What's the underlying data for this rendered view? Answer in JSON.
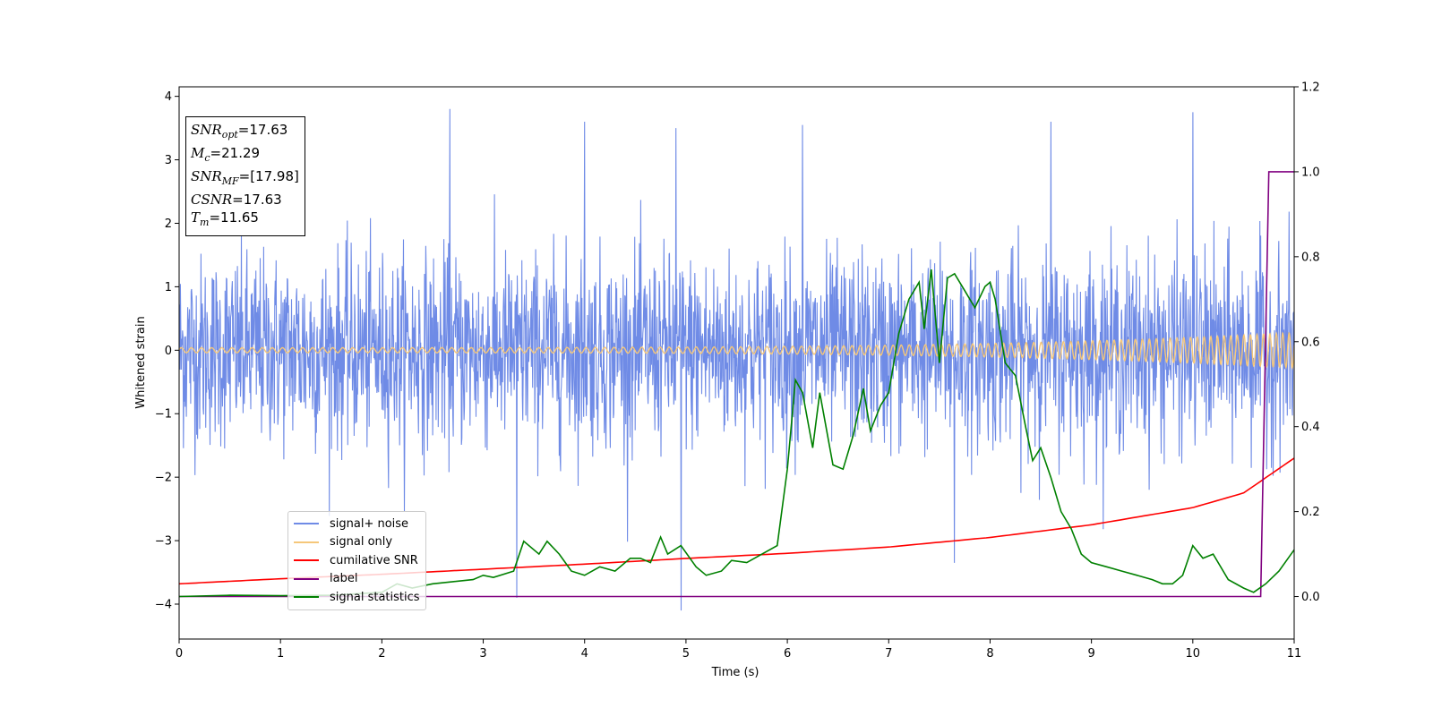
{
  "chart_data": {
    "type": "line",
    "title": "",
    "xlabel": "Time (s)",
    "ylabel": "Whitened strain",
    "xlim": [
      0,
      11
    ],
    "ylim_left": [
      -4.55,
      4.15
    ],
    "ylim_right": [
      -0.1,
      1.2
    ],
    "xticks": [
      "0",
      "1",
      "2",
      "3",
      "4",
      "5",
      "6",
      "7",
      "8",
      "9",
      "10",
      "11"
    ],
    "yticks_left": [
      "−4",
      "−3",
      "−2",
      "−1",
      "0",
      "1",
      "2",
      "3",
      "4"
    ],
    "yticks_right": [
      "0.0",
      "0.2",
      "0.4",
      "0.6",
      "0.8",
      "1.0",
      "1.2"
    ],
    "legend_location": "lower-left",
    "grid": false,
    "annotation_box": {
      "snr_opt": "17.63",
      "mc": "21.29",
      "snr_mf": "[17.98]",
      "csnr": "17.63",
      "tm": "11.65"
    },
    "series": [
      {
        "name": "signal+ noise",
        "axis": "left",
        "color": "#6f8be6",
        "description_values": {
          "noise_std": 0.75,
          "max_peak": 3.8,
          "min_peak": -4.1
        },
        "peaks": [
          [
            2.67,
            3.8
          ],
          [
            10.0,
            3.75
          ],
          [
            4.0,
            3.6
          ],
          [
            4.9,
            3.5
          ],
          [
            6.15,
            3.55
          ],
          [
            8.6,
            3.6
          ],
          [
            4.95,
            -4.1
          ],
          [
            3.33,
            -3.9
          ],
          [
            7.65,
            -3.35
          ]
        ]
      },
      {
        "name": "signal only",
        "axis": "left",
        "color": "#f5c77a",
        "amplitude_start": 0.04,
        "amplitude_end": 0.28,
        "frequency_start_hz": 10,
        "frequency_end_hz": 16
      },
      {
        "name": "cumilative SNR",
        "axis": "left",
        "color": "#ff0000",
        "x": [
          0,
          1,
          2,
          3,
          4,
          5,
          6,
          7,
          8,
          9,
          10,
          10.5,
          11
        ],
        "y": [
          -3.68,
          -3.6,
          -3.53,
          -3.45,
          -3.37,
          -3.28,
          -3.2,
          -3.1,
          -2.95,
          -2.75,
          -2.48,
          -2.25,
          -1.7
        ]
      },
      {
        "name": "label",
        "axis": "right",
        "color": "#800080",
        "x": [
          0,
          10.67,
          10.75,
          11
        ],
        "y": [
          0,
          0,
          1,
          1
        ]
      },
      {
        "name": "signal statistics",
        "axis": "right",
        "color": "#008000",
        "x": [
          0,
          0.5,
          1,
          1.5,
          2,
          2.15,
          2.3,
          2.5,
          2.7,
          2.9,
          3.0,
          3.1,
          3.3,
          3.4,
          3.55,
          3.63,
          3.75,
          3.87,
          4.0,
          4.15,
          4.3,
          4.45,
          4.55,
          4.65,
          4.75,
          4.82,
          4.95,
          5.1,
          5.2,
          5.35,
          5.45,
          5.6,
          5.75,
          5.9,
          6.0,
          6.08,
          6.15,
          6.25,
          6.32,
          6.45,
          6.55,
          6.65,
          6.75,
          6.82,
          6.92,
          7.0,
          7.1,
          7.2,
          7.3,
          7.35,
          7.42,
          7.5,
          7.58,
          7.65,
          7.75,
          7.85,
          7.95,
          8.0,
          8.05,
          8.15,
          8.25,
          8.35,
          8.42,
          8.5,
          8.6,
          8.7,
          8.8,
          8.9,
          9.0,
          9.15,
          9.3,
          9.45,
          9.6,
          9.7,
          9.8,
          9.9,
          10.0,
          10.1,
          10.2,
          10.35,
          10.5,
          10.6,
          10.72,
          10.85,
          11.0
        ],
        "y": [
          0.0,
          0.003,
          0.002,
          0.003,
          0.01,
          0.03,
          0.02,
          0.03,
          0.035,
          0.04,
          0.05,
          0.045,
          0.06,
          0.13,
          0.1,
          0.13,
          0.1,
          0.06,
          0.05,
          0.07,
          0.06,
          0.09,
          0.09,
          0.08,
          0.14,
          0.1,
          0.12,
          0.07,
          0.05,
          0.06,
          0.085,
          0.08,
          0.1,
          0.12,
          0.3,
          0.51,
          0.48,
          0.35,
          0.48,
          0.31,
          0.3,
          0.38,
          0.49,
          0.39,
          0.45,
          0.48,
          0.62,
          0.7,
          0.74,
          0.63,
          0.77,
          0.55,
          0.75,
          0.76,
          0.72,
          0.68,
          0.73,
          0.74,
          0.7,
          0.55,
          0.52,
          0.4,
          0.32,
          0.35,
          0.28,
          0.2,
          0.16,
          0.1,
          0.08,
          0.07,
          0.06,
          0.05,
          0.04,
          0.03,
          0.03,
          0.05,
          0.12,
          0.09,
          0.1,
          0.04,
          0.02,
          0.01,
          0.03,
          0.06,
          0.11
        ]
      }
    ]
  }
}
